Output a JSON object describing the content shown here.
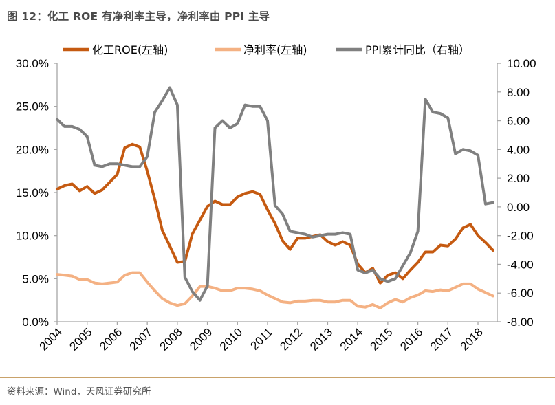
{
  "title": "图 12：化工 ROE 有净利率主导，净利率由 PPI 主导",
  "source": "资料来源：Wind，天风证券研究所",
  "chart_data": {
    "type": "line",
    "title": "图 12：化工 ROE 有净利率主导，净利率由 PPI 主导",
    "xlabel": "",
    "ylabel_left": "",
    "ylabel_right": "",
    "x_start": 2004.0,
    "x_step": 0.25,
    "xlim": [
      2004,
      2018.64
    ],
    "ylim_left": [
      0,
      30
    ],
    "ylim_right": [
      -8,
      10
    ],
    "x_tick_labels": [
      "2004",
      "2005",
      "2006",
      "2007",
      "2008",
      "2009",
      "2010",
      "2011",
      "2012",
      "2013",
      "2014",
      "2015",
      "2016",
      "2017",
      "2018"
    ],
    "y_left_tick_labels": [
      "0.0%",
      "5.0%",
      "10.0%",
      "15.0%",
      "20.0%",
      "25.0%",
      "30.0%"
    ],
    "y_right_tick_labels": [
      "-8.00",
      "-6.00",
      "-4.00",
      "-2.00",
      "0.00",
      "2.00",
      "4.00",
      "6.00",
      "8.00",
      "10.00"
    ],
    "legend_position": "top",
    "grid": false,
    "series": [
      {
        "name": "化工ROE(左轴)",
        "axis": "left",
        "color": "#c55a11",
        "values": [
          15.4,
          15.8,
          16.0,
          15.2,
          15.7,
          14.9,
          15.3,
          16.2,
          17.1,
          20.2,
          20.6,
          20.3,
          17.5,
          14.2,
          10.6,
          8.8,
          6.9,
          7.0,
          10.2,
          11.8,
          13.4,
          14.0,
          13.6,
          13.6,
          14.5,
          14.9,
          15.1,
          14.8,
          13.0,
          11.4,
          9.4,
          8.4,
          9.7,
          9.7,
          9.9,
          10.1,
          9.3,
          8.9,
          9.3,
          8.9,
          6.7,
          5.7,
          6.2,
          4.5,
          5.4,
          5.7,
          5.0,
          6.0,
          6.9,
          8.1,
          8.1,
          8.9,
          8.8,
          9.6,
          10.9,
          11.3,
          10.0,
          9.2,
          8.3
        ]
      },
      {
        "name": "净利率(左轴)",
        "axis": "left",
        "color": "#f4b183",
        "values": [
          5.5,
          5.4,
          5.3,
          4.9,
          4.9,
          4.5,
          4.4,
          4.5,
          4.6,
          5.4,
          5.7,
          5.7,
          4.6,
          3.6,
          2.7,
          2.2,
          1.9,
          2.1,
          3.0,
          4.1,
          4.1,
          3.9,
          3.6,
          3.6,
          3.9,
          3.9,
          3.8,
          3.6,
          3.1,
          2.7,
          2.3,
          2.2,
          2.4,
          2.4,
          2.5,
          2.5,
          2.3,
          2.3,
          2.5,
          2.5,
          1.8,
          1.7,
          2.0,
          1.6,
          2.2,
          2.6,
          2.3,
          2.8,
          3.1,
          3.6,
          3.5,
          3.7,
          3.6,
          4.0,
          4.4,
          4.4,
          3.8,
          3.4,
          3.0
        ]
      },
      {
        "name": "PPI累计同比（右轴）",
        "axis": "right",
        "color": "#808080",
        "values": [
          6.1,
          5.6,
          5.6,
          5.4,
          4.9,
          2.9,
          2.8,
          3.0,
          3.0,
          2.9,
          2.8,
          2.8,
          3.5,
          6.6,
          7.4,
          8.3,
          7.1,
          -4.9,
          -5.9,
          -6.5,
          -5.5,
          5.5,
          6.0,
          5.5,
          5.8,
          7.1,
          7.0,
          7.0,
          6.0,
          0.1,
          -0.5,
          -1.7,
          -1.8,
          -1.9,
          -2.1,
          -2.0,
          -1.9,
          -1.9,
          -1.8,
          -1.9,
          -4.4,
          -4.6,
          -4.4,
          -5.0,
          -5.2,
          -5.0,
          -4.1,
          -3.2,
          -1.7,
          7.5,
          6.6,
          6.5,
          6.2,
          3.7,
          4.0,
          3.9,
          3.6,
          0.2,
          0.3
        ]
      }
    ]
  }
}
